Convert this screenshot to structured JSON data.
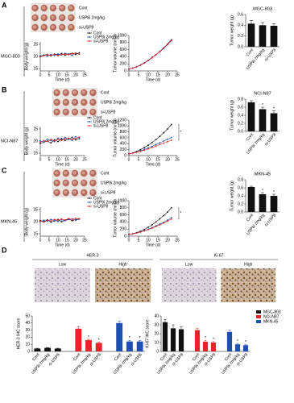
{
  "panels": [
    {
      "letter": "A",
      "cell_line": "MGC-803",
      "samples": [
        "Cont",
        "USP8i 2mg/kg",
        "si-USP8"
      ]
    },
    {
      "letter": "B",
      "cell_line": "NCI-N87",
      "samples": [
        "Cont",
        "USP8i 2mg/kg",
        "si-USP8"
      ]
    },
    {
      "letter": "C",
      "cell_line": "MKN-45",
      "samples": [
        "Cont",
        "USP8i 2mg/kg",
        "si-USP8"
      ]
    }
  ],
  "ihc": {
    "letter": "D",
    "markers": [
      {
        "name": "HER-3",
        "levels": [
          "Low",
          "High"
        ]
      },
      {
        "name": "Ki-67",
        "levels": [
          "Low",
          "High"
        ]
      }
    ]
  },
  "chart_data": [
    {
      "type": "line",
      "xlabel": "Time (d)",
      "ylabel": "Body weight (g)",
      "legend": "upper right",
      "x": [
        0,
        2,
        4,
        6,
        8,
        10,
        12,
        14,
        16,
        18,
        20,
        22
      ],
      "xlim": [
        0,
        25
      ],
      "xticks": [
        0,
        5,
        10,
        15,
        20,
        25
      ],
      "ylim": [
        14,
        26
      ],
      "yticks": [
        15,
        20,
        25
      ],
      "series": [
        {
          "name": "Cont",
          "color": "#111111",
          "values": [
            20,
            20.5,
            20.8,
            20.2,
            21,
            20.7,
            21.2,
            20.5,
            21,
            21.3,
            20.8,
            21.5
          ]
        },
        {
          "name": "USP8i 2mg/kg",
          "color": "#1f4fb0",
          "values": [
            20.2,
            20.6,
            20.1,
            20.8,
            20.4,
            21,
            20.6,
            21.3,
            20.9,
            20.5,
            21.2,
            21
          ]
        },
        {
          "name": "si-USP8",
          "color": "#e8242a",
          "values": [
            19.8,
            20.3,
            20.6,
            20.4,
            20.9,
            20.3,
            20.8,
            21,
            20.7,
            21.1,
            21.4,
            20.9
          ]
        }
      ]
    },
    {
      "type": "line",
      "xlabel": "Time (d)",
      "ylabel": "Tumor volume (mm3)",
      "x": [
        0,
        2,
        4,
        6,
        8,
        10,
        12,
        14,
        16,
        18,
        20,
        22
      ],
      "xlim": [
        0,
        25
      ],
      "xticks": [
        0,
        5,
        10,
        15,
        20,
        25
      ],
      "ylim": [
        0,
        1000
      ],
      "yticks": [
        0,
        200,
        400,
        600,
        800,
        1000
      ],
      "series": [
        {
          "name": "Cont",
          "color": "#111111",
          "values": [
            50,
            80,
            120,
            170,
            230,
            300,
            380,
            460,
            550,
            650,
            760,
            880
          ]
        },
        {
          "name": "USP8i 2mg/kg",
          "color": "#1f4fb0",
          "values": [
            50,
            75,
            115,
            160,
            220,
            290,
            370,
            450,
            540,
            630,
            740,
            850
          ]
        },
        {
          "name": "si-USP8",
          "color": "#e8242a",
          "values": [
            50,
            78,
            118,
            165,
            225,
            295,
            372,
            455,
            545,
            640,
            750,
            860
          ]
        }
      ]
    },
    {
      "type": "bar",
      "title": "MGC-803",
      "ylabel": "Tumor weight (g)",
      "color": "#111111",
      "categories": [
        "Cont",
        "USP8i 2mg/kg",
        "si-USP8"
      ],
      "values": [
        0.43,
        0.4,
        0.39
      ],
      "errors": [
        0.06,
        0.05,
        0.04
      ],
      "ylim": [
        0,
        0.6
      ],
      "yticks": [
        {
          "value": 0,
          "label": "0.0"
        },
        0.2,
        0.4,
        0.6
      ]
    },
    {
      "type": "line",
      "xlabel": "Time (d)",
      "ylabel": "Body weight (g)",
      "legend": "upper right",
      "x": [
        0,
        2,
        4,
        6,
        8,
        10,
        12,
        14,
        16,
        18,
        20,
        22
      ],
      "xlim": [
        0,
        25
      ],
      "xticks": [
        0,
        5,
        10,
        15,
        20,
        25
      ],
      "ylim": [
        14,
        26
      ],
      "yticks": [
        15,
        20,
        25
      ],
      "series": [
        {
          "name": "Cont",
          "color": "#111111",
          "values": [
            19,
            19.5,
            20,
            19.2,
            20.5,
            19.8,
            21,
            20.2,
            20.8,
            21.5,
            20.5,
            21
          ]
        },
        {
          "name": "USP8i 2mg/kg",
          "color": "#1f4fb0",
          "values": [
            20,
            19.6,
            20.8,
            20.2,
            19.8,
            21.2,
            20.4,
            21.5,
            20.9,
            20.3,
            21.8,
            21.2
          ]
        },
        {
          "name": "si-USP8",
          "color": "#e8242a",
          "values": [
            19.5,
            20.2,
            19.8,
            20.6,
            20.1,
            20.7,
            20.3,
            20.9,
            21.2,
            20.6,
            21,
            21.6
          ]
        }
      ]
    },
    {
      "type": "line",
      "xlabel": "Time (d)",
      "ylabel": "Tumor volume (mm3)",
      "annotation": "*",
      "x": [
        0,
        2,
        4,
        6,
        8,
        10,
        12,
        14,
        16,
        18,
        20,
        22
      ],
      "xlim": [
        0,
        25
      ],
      "xticks": [
        0,
        5,
        10,
        15,
        20,
        25
      ],
      "ylim": [
        0,
        1200
      ],
      "yticks": [
        0,
        200,
        400,
        600,
        800,
        1000,
        1200
      ],
      "series": [
        {
          "name": "Cont",
          "color": "#111111",
          "values": [
            60,
            90,
            140,
            200,
            270,
            350,
            440,
            540,
            650,
            770,
            900,
            1050
          ]
        },
        {
          "name": "USP8i 2mg/kg",
          "color": "#1f4fb0",
          "values": [
            60,
            85,
            120,
            160,
            210,
            260,
            310,
            370,
            430,
            490,
            550,
            610
          ]
        },
        {
          "name": "si-USP8",
          "color": "#e8242a",
          "values": [
            60,
            80,
            110,
            145,
            185,
            225,
            270,
            320,
            370,
            420,
            470,
            520
          ]
        }
      ]
    },
    {
      "type": "bar",
      "title": "NCI-N87",
      "ylabel": "Tumor weight (g)",
      "color": "#111111",
      "categories": [
        "Cont",
        "USP8i 2mg/kg",
        "si-USP8"
      ],
      "values": [
        0.72,
        0.55,
        0.45
      ],
      "errors": [
        0.04,
        0.05,
        0.06
      ],
      "sig": [
        null,
        "*",
        "*"
      ],
      "ylim": [
        0,
        0.8
      ],
      "yticks": [
        {
          "value": 0,
          "label": "0.0"
        },
        0.2,
        0.4,
        0.6,
        0.8
      ]
    },
    {
      "type": "line",
      "xlabel": "Time (d)",
      "ylabel": "Body weight (g)",
      "legend": "upper right",
      "x": [
        0,
        2,
        4,
        6,
        8,
        10,
        12,
        14,
        16,
        18,
        20,
        22
      ],
      "xlim": [
        0,
        25
      ],
      "xticks": [
        0,
        5,
        10,
        15,
        20,
        25
      ],
      "ylim": [
        14,
        26
      ],
      "yticks": [
        15,
        20,
        25
      ],
      "series": [
        {
          "name": "Cont",
          "color": "#111111",
          "values": [
            20.5,
            20,
            20.8,
            19.8,
            20.3,
            20.9,
            19.9,
            20.6,
            21,
            20.4,
            20.8,
            21.2
          ]
        },
        {
          "name": "USP8i 2mg/kg",
          "color": "#1f4fb0",
          "values": [
            20,
            20.6,
            20.2,
            20.9,
            20.5,
            20.1,
            20.8,
            20.4,
            20.9,
            21.1,
            20.6,
            21
          ]
        },
        {
          "name": "si-USP8",
          "color": "#e8242a",
          "values": [
            20.2,
            19.8,
            20.5,
            20.3,
            20.9,
            20.6,
            21.1,
            20.7,
            21.3,
            20.9,
            21.4,
            21.1
          ]
        }
      ]
    },
    {
      "type": "line",
      "xlabel": "Time (d)",
      "ylabel": "Tumor volume (mm3)",
      "annotation": "*",
      "x": [
        0,
        2,
        4,
        6,
        8,
        10,
        12,
        14,
        16,
        18,
        20,
        22
      ],
      "xlim": [
        0,
        25
      ],
      "xticks": [
        0,
        5,
        10,
        15,
        20,
        25
      ],
      "ylim": [
        0,
        1000
      ],
      "yticks": [
        0,
        200,
        400,
        600,
        800,
        1000
      ],
      "series": [
        {
          "name": "Cont",
          "color": "#111111",
          "values": [
            50,
            70,
            100,
            140,
            190,
            250,
            320,
            400,
            490,
            580,
            680,
            800
          ]
        },
        {
          "name": "USP8i 2mg/kg",
          "color": "#1f4fb0",
          "values": [
            50,
            68,
            92,
            120,
            155,
            195,
            240,
            290,
            340,
            390,
            450,
            520
          ]
        },
        {
          "name": "si-USP8",
          "color": "#e8242a",
          "values": [
            50,
            66,
            88,
            115,
            148,
            185,
            225,
            270,
            320,
            370,
            425,
            480
          ]
        }
      ]
    },
    {
      "type": "bar",
      "title": "MKN-45",
      "ylabel": "Tumor weight (g)",
      "color": "#111111",
      "categories": [
        "Cont",
        "USP8i 2mg/kg",
        "si-USP8"
      ],
      "values": [
        0.62,
        0.44,
        0.4
      ],
      "errors": [
        0.02,
        0.04,
        0.04
      ],
      "sig": [
        null,
        "*",
        "*"
      ],
      "ylim": [
        0,
        0.8
      ],
      "yticks": [
        {
          "value": 0,
          "label": "0.0"
        },
        0.2,
        0.4,
        0.6,
        0.8
      ]
    },
    {
      "type": "bar",
      "ylabel": "HER-3 IHC score",
      "categories": [
        "Cont",
        "USP8i 2mg/kg",
        "si-USP8"
      ],
      "ylim": [
        0,
        50
      ],
      "yticks": [
        0,
        10,
        20,
        30,
        40,
        50
      ],
      "series": [
        {
          "name": "MGC-803",
          "color": "#111111",
          "values": [
            4,
            5,
            4
          ],
          "errors": [
            0.5,
            0.5,
            0.5
          ]
        },
        {
          "name": "NCI-N87",
          "color": "#e8242a",
          "values": [
            32,
            16,
            12
          ],
          "errors": [
            3,
            1,
            1
          ],
          "sig": [
            null,
            "*",
            "*"
          ]
        },
        {
          "name": "MKN-45",
          "color": "#1f4fb0",
          "values": [
            40,
            14,
            14
          ],
          "errors": [
            3,
            1.5,
            1.5
          ],
          "sig": [
            null,
            "*",
            "*"
          ]
        }
      ]
    },
    {
      "type": "bar",
      "ylabel": "Ki-67 IHC score",
      "legend": "upper right",
      "categories": [
        "Cont",
        "USP8i 2mg/kg",
        "si-USP8"
      ],
      "ylim": [
        0,
        40
      ],
      "yticks": [
        0,
        10,
        20,
        30,
        40
      ],
      "series": [
        {
          "name": "MGC-803",
          "color": "#111111",
          "values": [
            33,
            26,
            25
          ],
          "errors": [
            3,
            4,
            3
          ]
        },
        {
          "name": "NCI-N87",
          "color": "#e8242a",
          "values": [
            24,
            11,
            10
          ],
          "errors": [
            2,
            1.5,
            1
          ],
          "sig": [
            null,
            "*",
            "*"
          ]
        },
        {
          "name": "MKN-45",
          "color": "#1f4fb0",
          "values": [
            22,
            8,
            7
          ],
          "errors": [
            2,
            1,
            1
          ],
          "sig": [
            null,
            "*",
            "*"
          ]
        }
      ]
    }
  ]
}
